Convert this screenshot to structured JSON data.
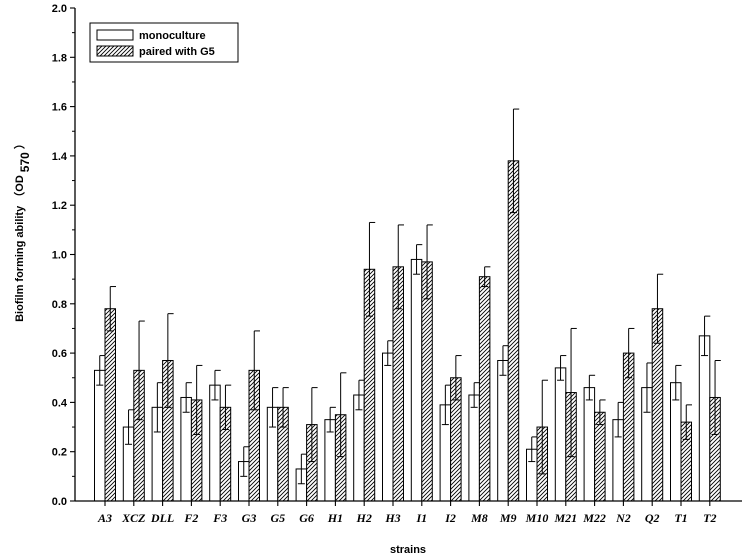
{
  "chart_data": {
    "type": "bar",
    "title": "",
    "xlabel": "strains",
    "ylabel": {
      "main": "Biofilm forming ability （OD",
      "subscript": "570",
      "close": "）"
    },
    "ylim": [
      0,
      2.0
    ],
    "yticks": [
      "0.0",
      "0.2",
      "0.4",
      "0.6",
      "0.8",
      "1.0",
      "1.2",
      "1.4",
      "1.6",
      "1.8",
      "2.0"
    ],
    "legend_position": "top-left",
    "categories": [
      "A3",
      "XCZ",
      "DLL",
      "F2",
      "F3",
      "G3",
      "G5",
      "G6",
      "H1",
      "H2",
      "H3",
      "I1",
      "I2",
      "M8",
      "M9",
      "M10",
      "M21",
      "M22",
      "N2",
      "Q2",
      "T1",
      "T2"
    ],
    "series": [
      {
        "name": "monoculture",
        "pattern": "open",
        "values": [
          0.53,
          0.3,
          0.38,
          0.42,
          0.47,
          0.16,
          0.38,
          0.13,
          0.33,
          0.43,
          0.6,
          0.98,
          0.39,
          0.43,
          0.57,
          0.21,
          0.54,
          0.46,
          0.33,
          0.46,
          0.48,
          0.67
        ],
        "errors": [
          0.06,
          0.07,
          0.1,
          0.06,
          0.06,
          0.06,
          0.08,
          0.06,
          0.05,
          0.06,
          0.05,
          0.06,
          0.08,
          0.05,
          0.06,
          0.05,
          0.05,
          0.05,
          0.07,
          0.1,
          0.07,
          0.08
        ]
      },
      {
        "name": "paired with G5",
        "pattern": "hatched",
        "values": [
          0.78,
          0.53,
          0.57,
          0.41,
          0.38,
          0.53,
          0.38,
          0.31,
          0.35,
          0.94,
          0.95,
          0.97,
          0.5,
          0.91,
          1.38,
          0.3,
          0.44,
          0.36,
          0.6,
          0.78,
          0.32,
          0.42
        ],
        "errors": [
          0.09,
          0.2,
          0.19,
          0.14,
          0.09,
          0.16,
          0.08,
          0.15,
          0.17,
          0.19,
          0.17,
          0.15,
          0.09,
          0.04,
          0.21,
          0.19,
          0.26,
          0.05,
          0.1,
          0.14,
          0.07,
          0.15
        ]
      }
    ]
  }
}
